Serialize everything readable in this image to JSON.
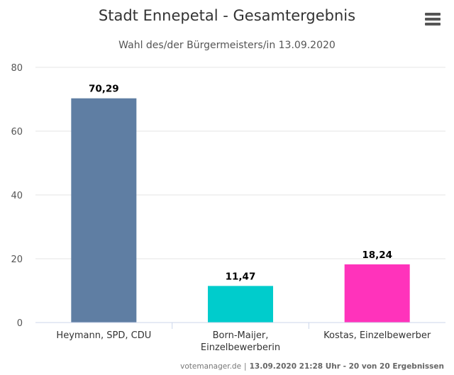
{
  "chart_data": {
    "type": "bar",
    "title": "Stadt Ennepetal - Gesamtergebnis",
    "subtitle": "Wahl des/der Bürgermeisters/in 13.09.2020",
    "categories": [
      "Heymann, SPD, CDU",
      "Born-Maijer, Einzelbewerberin",
      "Kostas, Einzelbewerber"
    ],
    "category_lines": [
      [
        "Heymann, SPD, CDU"
      ],
      [
        "Born-Maijer,",
        "Einzelbewerberin"
      ],
      [
        "Kostas, Einzelbewerber"
      ]
    ],
    "values": [
      70.29,
      11.47,
      18.24
    ],
    "value_labels": [
      "70,29",
      "11,47",
      "18,24"
    ],
    "colors": [
      "#5f7ea3",
      "#00cccc",
      "#ff33bb"
    ],
    "ylim": [
      0,
      80
    ],
    "yticks": [
      0,
      20,
      40,
      60,
      80
    ],
    "ytick_labels": [
      "0",
      "20",
      "40",
      "60",
      "80"
    ],
    "grid": true,
    "legend": "none"
  },
  "credits": {
    "source": "votemanager.de",
    "separator": "|",
    "detail": "13.09.2020 21:28 Uhr - 20 von 20 Ergebnissen"
  },
  "icons": {
    "menu": "hamburger-menu-icon"
  }
}
